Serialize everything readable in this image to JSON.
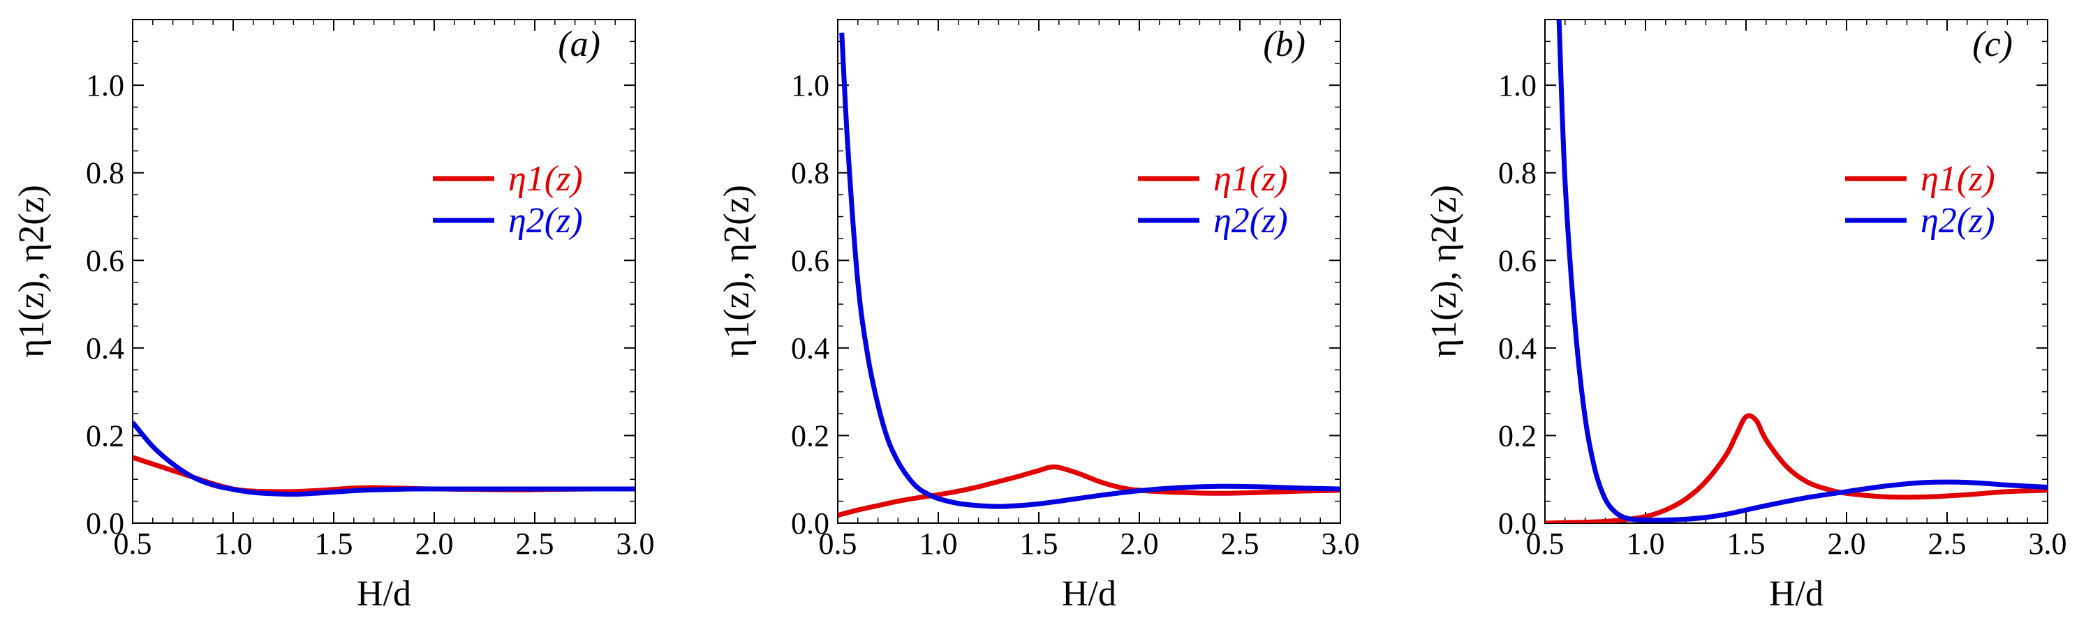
{
  "chart_data": [
    {
      "type": "line",
      "panel_label": "(a)",
      "panel_label_parts": {
        "open": "(",
        "letter": "a",
        "close": ")"
      },
      "xlabel": "H/d",
      "xlabel_parts": {
        "var": "H",
        "rest": "/d"
      },
      "ylabel": "η1(z), η2(z)",
      "xlim": [
        0.5,
        3.0
      ],
      "ylim": [
        0.0,
        1.15
      ],
      "xticks": [
        "0.5",
        "1.0",
        "1.5",
        "2.0",
        "2.5",
        "3.0"
      ],
      "yticks": [
        "0.0",
        "0.2",
        "0.4",
        "0.6",
        "0.8",
        "1.0"
      ],
      "legend_position": "center-right",
      "series": [
        {
          "name": "η1(z)",
          "color": "#e00000",
          "x": [
            0.5,
            0.6,
            0.7,
            0.8,
            0.9,
            1.0,
            1.1,
            1.2,
            1.3,
            1.4,
            1.5,
            1.6,
            1.7,
            1.8,
            1.9,
            2.0,
            2.2,
            2.4,
            2.6,
            2.8,
            3.0
          ],
          "y": [
            0.15,
            0.135,
            0.12,
            0.105,
            0.09,
            0.078,
            0.073,
            0.072,
            0.072,
            0.074,
            0.077,
            0.08,
            0.081,
            0.08,
            0.079,
            0.078,
            0.077,
            0.076,
            0.077,
            0.078,
            0.078
          ]
        },
        {
          "name": "η2(z)",
          "color": "#0000e0",
          "x": [
            0.5,
            0.6,
            0.7,
            0.8,
            0.9,
            1.0,
            1.1,
            1.2,
            1.3,
            1.4,
            1.5,
            1.6,
            1.7,
            1.8,
            1.9,
            2.0,
            2.2,
            2.4,
            2.6,
            2.8,
            3.0
          ],
          "y": [
            0.23,
            0.175,
            0.135,
            0.105,
            0.087,
            0.077,
            0.07,
            0.067,
            0.066,
            0.068,
            0.071,
            0.074,
            0.076,
            0.077,
            0.078,
            0.078,
            0.078,
            0.078,
            0.078,
            0.078,
            0.078
          ]
        }
      ]
    },
    {
      "type": "line",
      "panel_label": "(b)",
      "panel_label_parts": {
        "open": "(",
        "letter": "b",
        "close": ")"
      },
      "xlabel": "H/d",
      "xlabel_parts": {
        "var": "H",
        "rest": "/d"
      },
      "ylabel": "η1(z), η2(z)",
      "xlim": [
        0.5,
        3.0
      ],
      "ylim": [
        0.0,
        1.15
      ],
      "xticks": [
        "0.5",
        "1.0",
        "1.5",
        "2.0",
        "2.5",
        "3.0"
      ],
      "yticks": [
        "0.0",
        "0.2",
        "0.4",
        "0.6",
        "0.8",
        "1.0"
      ],
      "legend_position": "center-right",
      "series": [
        {
          "name": "η1(z)",
          "color": "#e00000",
          "x": [
            0.5,
            0.6,
            0.7,
            0.8,
            0.9,
            1.0,
            1.1,
            1.2,
            1.3,
            1.4,
            1.5,
            1.55,
            1.6,
            1.7,
            1.8,
            1.9,
            2.0,
            2.2,
            2.4,
            2.6,
            2.8,
            3.0
          ],
          "y": [
            0.018,
            0.03,
            0.04,
            0.05,
            0.058,
            0.065,
            0.073,
            0.083,
            0.095,
            0.107,
            0.12,
            0.127,
            0.127,
            0.113,
            0.095,
            0.082,
            0.075,
            0.07,
            0.068,
            0.07,
            0.073,
            0.075
          ]
        },
        {
          "name": "η2(z)",
          "color": "#0000e0",
          "x": [
            0.52,
            0.55,
            0.6,
            0.65,
            0.7,
            0.75,
            0.8,
            0.85,
            0.9,
            0.95,
            1.0,
            1.1,
            1.2,
            1.3,
            1.4,
            1.5,
            1.6,
            1.8,
            2.0,
            2.2,
            2.4,
            2.6,
            2.8,
            3.0
          ],
          "y": [
            1.12,
            0.86,
            0.55,
            0.38,
            0.27,
            0.19,
            0.14,
            0.105,
            0.08,
            0.066,
            0.056,
            0.045,
            0.04,
            0.038,
            0.04,
            0.044,
            0.05,
            0.063,
            0.074,
            0.081,
            0.084,
            0.083,
            0.08,
            0.078
          ]
        }
      ]
    },
    {
      "type": "line",
      "panel_label": "(c)",
      "panel_label_parts": {
        "open": "(",
        "letter": "c",
        "close": ")"
      },
      "xlabel": "H/d",
      "xlabel_parts": {
        "var": "H",
        "rest": "/d"
      },
      "ylabel": "η1(z), η2(z)",
      "xlim": [
        0.5,
        3.0
      ],
      "ylim": [
        0.0,
        1.15
      ],
      "xticks": [
        "0.5",
        "1.0",
        "1.5",
        "2.0",
        "2.5",
        "3.0"
      ],
      "yticks": [
        "0.0",
        "0.2",
        "0.4",
        "0.6",
        "0.8",
        "1.0"
      ],
      "legend_position": "center-right",
      "series": [
        {
          "name": "η1(z)",
          "color": "#e00000",
          "x": [
            0.5,
            0.6,
            0.7,
            0.8,
            0.9,
            1.0,
            1.1,
            1.2,
            1.3,
            1.4,
            1.45,
            1.5,
            1.55,
            1.6,
            1.7,
            1.8,
            1.9,
            2.0,
            2.2,
            2.4,
            2.6,
            2.8,
            3.0
          ],
          "y": [
            0.0,
            0.001,
            0.002,
            0.004,
            0.008,
            0.015,
            0.03,
            0.055,
            0.095,
            0.155,
            0.2,
            0.243,
            0.235,
            0.19,
            0.13,
            0.095,
            0.078,
            0.068,
            0.06,
            0.06,
            0.065,
            0.072,
            0.075
          ]
        },
        {
          "name": "η2(z)",
          "color": "#0000e0",
          "x": [
            0.57,
            0.6,
            0.65,
            0.7,
            0.75,
            0.8,
            0.85,
            0.9,
            0.95,
            1.0,
            1.1,
            1.2,
            1.3,
            1.4,
            1.5,
            1.6,
            1.8,
            2.0,
            2.2,
            2.4,
            2.6,
            2.8,
            3.0
          ],
          "y": [
            1.15,
            0.78,
            0.45,
            0.24,
            0.12,
            0.055,
            0.025,
            0.012,
            0.008,
            0.007,
            0.007,
            0.009,
            0.013,
            0.02,
            0.03,
            0.04,
            0.058,
            0.072,
            0.085,
            0.093,
            0.093,
            0.087,
            0.082
          ]
        }
      ]
    }
  ]
}
